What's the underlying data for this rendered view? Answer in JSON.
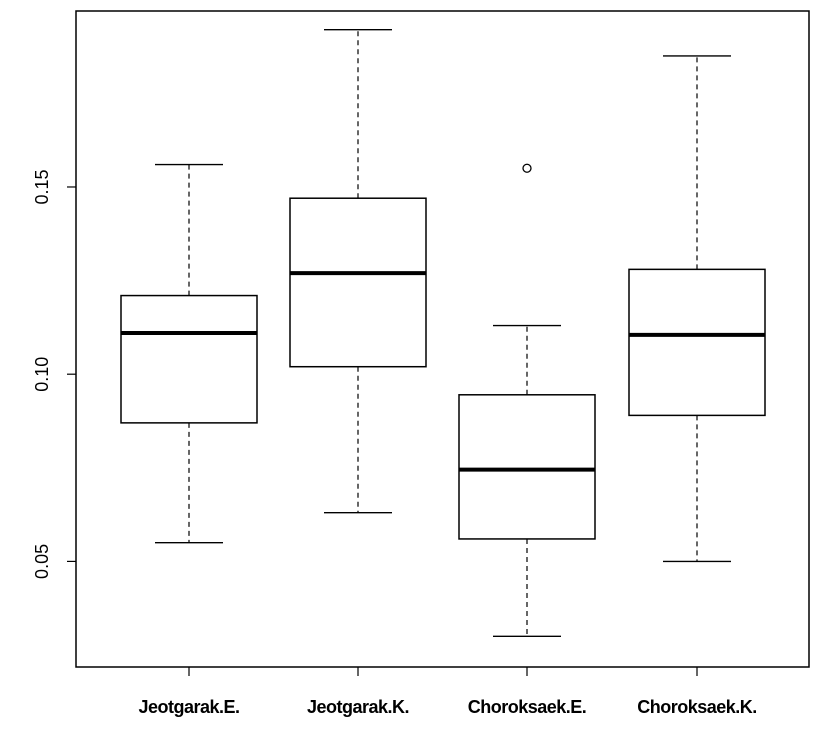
{
  "chart_data": {
    "type": "boxplot",
    "title": "",
    "xlabel": "",
    "ylabel": "",
    "ylim": [
      0.0218,
      0.197
    ],
    "y_ticks": [
      0.05,
      0.1,
      0.15
    ],
    "y_tick_labels": [
      "0.05",
      "0.10",
      "0.15"
    ],
    "categories": [
      "Jeotgarak.E.",
      "Jeotgarak.K.",
      "Choroksaek.E.",
      "Choroksaek.K."
    ],
    "boxes": [
      {
        "category": "Jeotgarak.E.",
        "whisker_low": 0.055,
        "q1": 0.087,
        "median": 0.111,
        "q3": 0.121,
        "whisker_high": 0.156,
        "outliers": []
      },
      {
        "category": "Jeotgarak.K.",
        "whisker_low": 0.063,
        "q1": 0.102,
        "median": 0.127,
        "q3": 0.147,
        "whisker_high": 0.192,
        "outliers": []
      },
      {
        "category": "Choroksaek.E.",
        "whisker_low": 0.03,
        "q1": 0.056,
        "median": 0.0745,
        "q3": 0.0945,
        "whisker_high": 0.113,
        "outliers": [
          0.155
        ]
      },
      {
        "category": "Choroksaek.K.",
        "whisker_low": 0.05,
        "q1": 0.089,
        "median": 0.1105,
        "q3": 0.128,
        "whisker_high": 0.185,
        "outliers": []
      }
    ],
    "grid": false,
    "legend": "none",
    "colors": {
      "box_fill": "#ffffff",
      "stroke": "#000000"
    }
  }
}
